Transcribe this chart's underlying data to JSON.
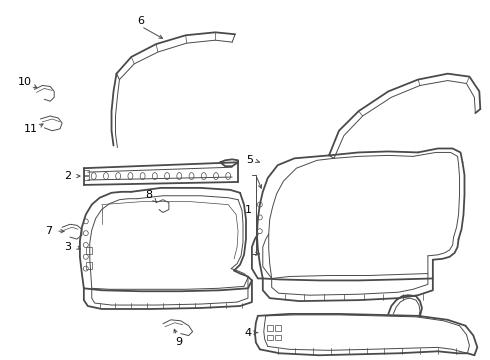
{
  "bg_color": "#ffffff",
  "line_color": "#4a4a4a",
  "lw_main": 1.3,
  "lw_inner": 0.7,
  "lw_thin": 0.5,
  "label_fs": 8.0
}
